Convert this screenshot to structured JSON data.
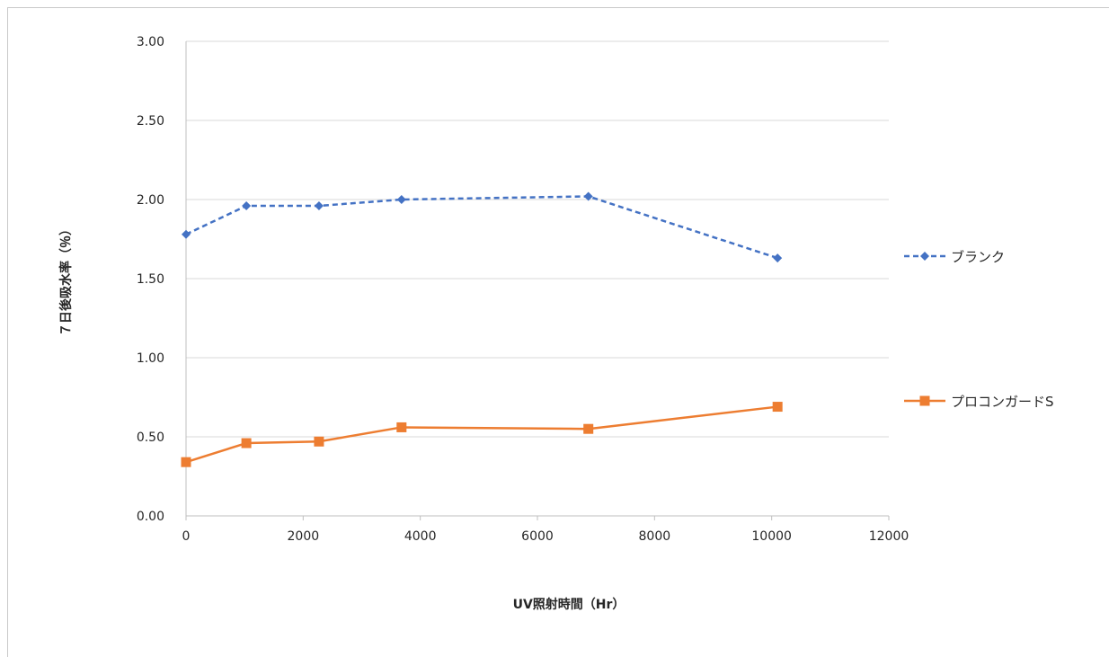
{
  "chart_data": {
    "type": "line",
    "title": "",
    "xlabel": "UV照射時間（Hr）",
    "ylabel": "７日後吸水率（％）",
    "xlim": [
      0,
      12000
    ],
    "ylim": [
      0,
      3.0
    ],
    "x_ticks": [
      "0",
      "2000",
      "4000",
      "6000",
      "8000",
      "10000",
      "12000"
    ],
    "y_ticks": [
      "0.00",
      "0.50",
      "1.00",
      "1.50",
      "2.00",
      "2.50",
      "3.00"
    ],
    "grid": true,
    "legend_position": "right",
    "series": [
      {
        "name": "ブランク",
        "color": "#4472C4",
        "line_style": "dashed",
        "marker": "diamond",
        "x": [
          0,
          1030,
          2270,
          3680,
          6870,
          10100
        ],
        "y": [
          1.78,
          1.96,
          1.96,
          2.0,
          2.02,
          1.63
        ]
      },
      {
        "name": "プロコンガードS",
        "color": "#ED7D31",
        "line_style": "solid",
        "marker": "square",
        "x": [
          0,
          1030,
          2270,
          3680,
          6870,
          10100
        ],
        "y": [
          0.34,
          0.46,
          0.47,
          0.56,
          0.55,
          0.69
        ]
      }
    ]
  }
}
